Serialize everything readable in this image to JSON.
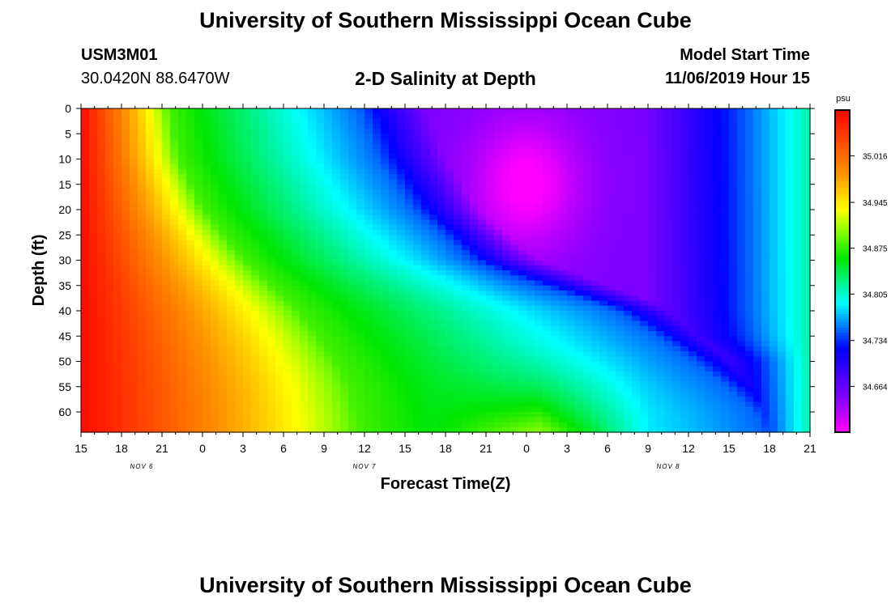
{
  "header": {
    "title_top": "University of Southern Mississippi Ocean Cube",
    "title_bottom": "University of Southern Mississippi Ocean Cube",
    "station_id": "USM3M01",
    "station_coords": "30.0420N 88.6470W",
    "subtitle": "2-D Salinity at Depth",
    "start_label": "Model Start Time",
    "start_value": "11/06/2019 Hour 15"
  },
  "chart_data": {
    "type": "heatmap",
    "title": "2-D Salinity at Depth",
    "xlabel": "Forecast Time(Z)",
    "ylabel": "Depth (ft)",
    "x_hours_start": "11/06/2019 15Z",
    "x_range_hours": [
      0,
      54
    ],
    "x_tick_labels": [
      "15",
      "18",
      "21",
      "0",
      "3",
      "6",
      "9",
      "12",
      "15",
      "18",
      "21",
      "0",
      "3",
      "6",
      "9",
      "12",
      "15",
      "18",
      "21"
    ],
    "date_labels": [
      {
        "label": "NOV 6",
        "hour": 4.5
      },
      {
        "label": "NOV 7",
        "hour": 21
      },
      {
        "label": "NOV 8",
        "hour": 43.5
      }
    ],
    "ylim": [
      0,
      64
    ],
    "y_ticks": [
      0,
      5,
      10,
      15,
      20,
      25,
      30,
      35,
      40,
      45,
      50,
      55,
      60
    ],
    "colorbar": {
      "unit": "psu",
      "min": 34.594,
      "max": 35.086,
      "tick_values": [
        35.016,
        34.945,
        34.875,
        34.805,
        34.734,
        34.664
      ],
      "tick_labels": [
        "35.016",
        "34.945",
        "34.875",
        "34.805",
        "34.734",
        "34.664"
      ]
    },
    "yellow_ridge": {
      "description": "approximate hour of 34.88 psu isoline by depth",
      "depth": [
        0,
        10,
        20,
        30,
        35,
        40,
        45,
        50,
        55,
        60,
        64
      ],
      "hour": [
        6.5,
        7.2,
        9.0,
        12.0,
        14.0,
        16.0,
        17.5,
        18.8,
        19.8,
        20.3,
        20.5
      ]
    },
    "min_center": {
      "hour": 33,
      "depth": 15,
      "value": 34.6
    }
  }
}
